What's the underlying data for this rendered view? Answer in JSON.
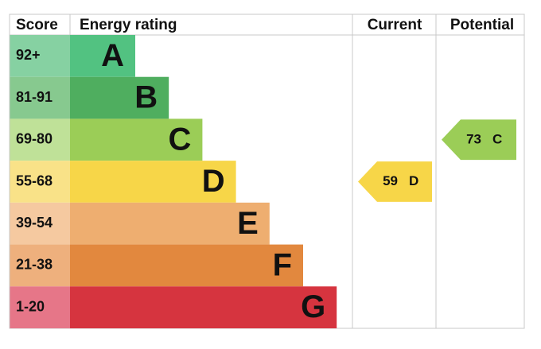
{
  "header": {
    "score": "Score",
    "rating": "Energy rating",
    "current": "Current",
    "potential": "Potential"
  },
  "bands": [
    {
      "score": "92+",
      "letter": "A",
      "color": "#52c281",
      "light": "#86d1a2"
    },
    {
      "score": "81-91",
      "letter": "B",
      "color": "#4fae5f",
      "light": "#87c98f"
    },
    {
      "score": "69-80",
      "letter": "C",
      "color": "#9bcd57",
      "light": "#bfe198"
    },
    {
      "score": "55-68",
      "letter": "D",
      "color": "#f7d648",
      "light": "#f9e288"
    },
    {
      "score": "39-54",
      "letter": "E",
      "color": "#eeae70",
      "light": "#f5c9a0"
    },
    {
      "score": "21-38",
      "letter": "F",
      "color": "#e2883e",
      "light": "#eeb07d"
    },
    {
      "score": "1-20",
      "letter": "G",
      "color": "#d6343f",
      "light": "#e67688"
    }
  ],
  "current": {
    "value": 59,
    "letter": "D",
    "band": 3
  },
  "potential": {
    "value": 73,
    "letter": "C",
    "band": 2
  }
}
